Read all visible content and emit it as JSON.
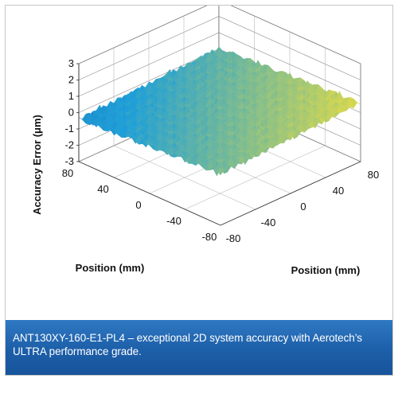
{
  "caption": "ANT130XY-160-E1-PL4 – exceptional 2D system accuracy with Aerotech’s ULTRA performance grade.",
  "colors": {
    "caption_bg": "#1d5fa9",
    "surface_low": "#1f9fd8",
    "surface_high": "#f2e03a",
    "peak": "#e58a2b",
    "trough": "#1a67b8"
  },
  "chart_data": {
    "type": "surface",
    "title": "",
    "zlabel": "Accuracy Error (μm)",
    "xlabel": "Position (mm)",
    "ylabel": "Position (mm)",
    "xlim": [
      -80,
      80
    ],
    "ylim": [
      -80,
      80
    ],
    "zlim": [
      -3,
      3
    ],
    "z_ticks": [
      "3",
      "2",
      "1",
      "0",
      "-1",
      "-2",
      "-3"
    ],
    "x_ticks": [
      "80",
      "40",
      "0",
      "-40",
      "-80"
    ],
    "y_ticks": [
      "-80",
      "-40",
      "0",
      "40",
      "80"
    ],
    "grid": true,
    "surface_description_values": {
      "base_tilt_min": -0.4,
      "base_tilt_max": 0.6,
      "ripple_amplitude": 0.35
    }
  }
}
